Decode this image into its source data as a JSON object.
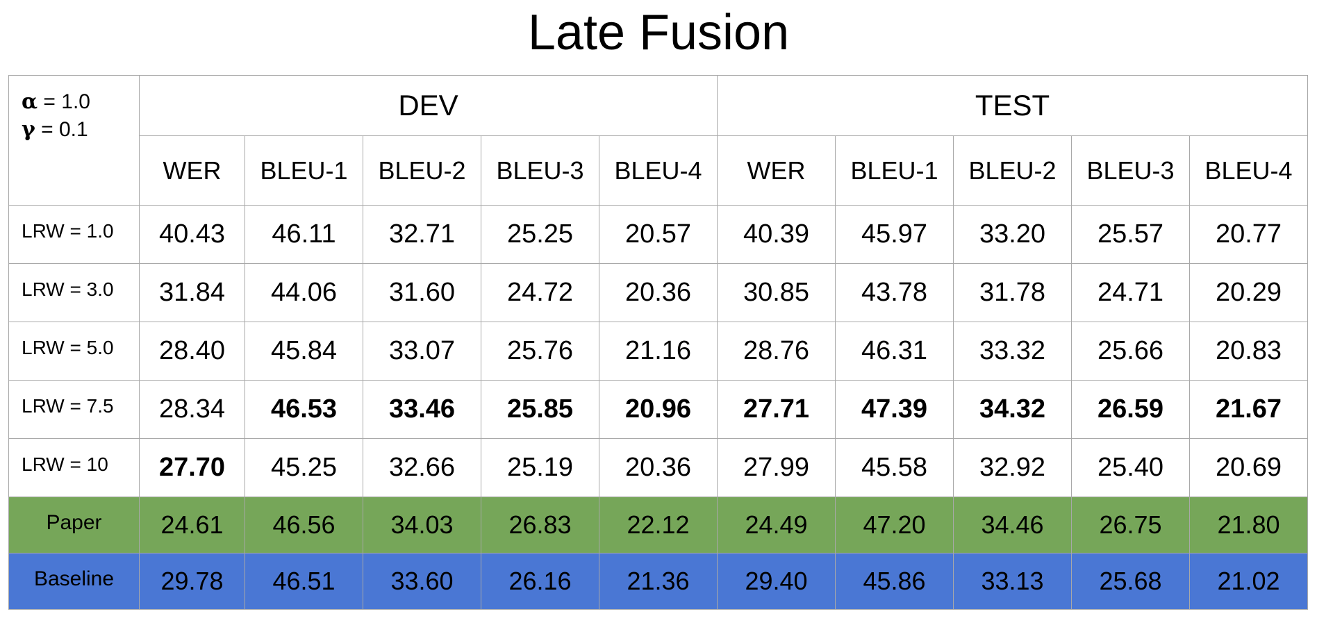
{
  "title": "Late Fusion",
  "corner": {
    "alpha_symbol": "α",
    "alpha_text": " = 1.0",
    "gamma_symbol": "γ",
    "gamma_text": " =  0.1"
  },
  "groups": [
    "DEV",
    "TEST"
  ],
  "columns": [
    "WER",
    "BLEU-1",
    "BLEU-2",
    "BLEU-3",
    "BLEU-4",
    "WER",
    "BLEU-1",
    "BLEU-2",
    "BLEU-3",
    "BLEU-4"
  ],
  "rows": [
    {
      "label": "LRW = 1.0",
      "values": [
        "40.43",
        "46.11",
        "32.71",
        "25.25",
        "20.57",
        "40.39",
        "45.97",
        "33.20",
        "25.57",
        "20.77"
      ]
    },
    {
      "label": "LRW = 3.0",
      "values": [
        "31.84",
        "44.06",
        "31.60",
        "24.72",
        "20.36",
        "30.85",
        "43.78",
        "31.78",
        "24.71",
        "20.29"
      ]
    },
    {
      "label": "LRW = 5.0",
      "values": [
        "28.40",
        "45.84",
        "33.07",
        "25.76",
        "21.16",
        "28.76",
        "46.31",
        "33.32",
        "25.66",
        "20.83"
      ]
    },
    {
      "label": "LRW = 7.5",
      "values": [
        "28.34",
        "46.53",
        "33.46",
        "25.85",
        "20.96",
        "27.71",
        "47.39",
        "34.32",
        "26.59",
        "21.67"
      ]
    },
    {
      "label": "LRW = 10",
      "values": [
        "27.70",
        "45.25",
        "32.66",
        "25.19",
        "20.36",
        "27.99",
        "45.58",
        "32.92",
        "25.40",
        "20.69"
      ]
    },
    {
      "label": "Paper",
      "values": [
        "24.61",
        "46.56",
        "34.03",
        "26.83",
        "22.12",
        "24.49",
        "47.20",
        "34.46",
        "26.75",
        "21.80"
      ]
    },
    {
      "label": "Baseline",
      "values": [
        "29.78",
        "46.51",
        "33.60",
        "26.16",
        "21.36",
        "29.40",
        "45.86",
        "33.13",
        "25.68",
        "21.02"
      ]
    }
  ],
  "colors": {
    "paper_row": "#76a659",
    "baseline_row": "#4a77d4",
    "grid": "#a8a8a8"
  }
}
